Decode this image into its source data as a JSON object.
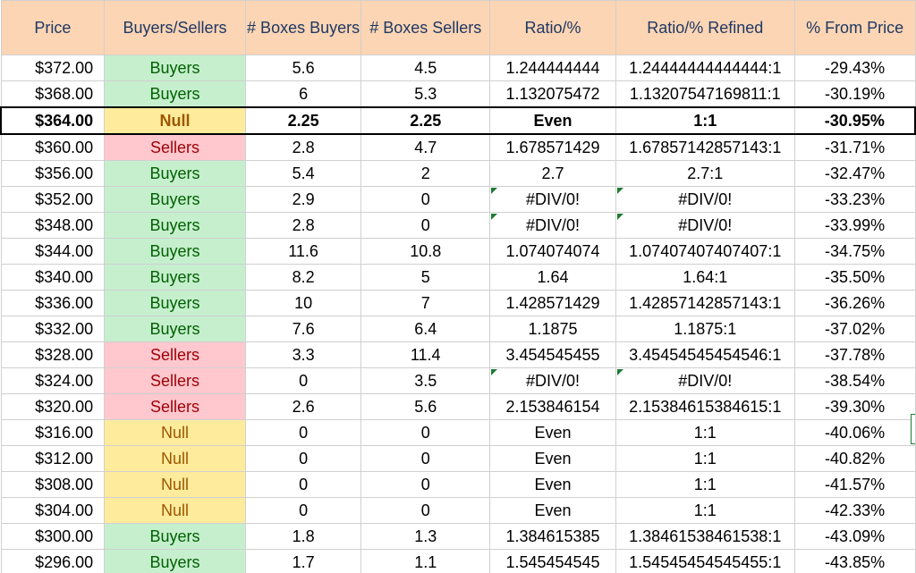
{
  "headers": [
    "Price",
    "Buyers/Sellers",
    "# Boxes Buyers",
    "# Boxes Sellers",
    "Ratio/%",
    "Ratio/% Refined",
    "% From Price"
  ],
  "colors": {
    "header_bg": "#fcd5b4",
    "header_text": "#1f3864",
    "buyers_bg": "#c6efce",
    "buyers_text": "#006100",
    "sellers_bg": "#ffc7ce",
    "sellers_text": "#9c0006",
    "null_bg": "#ffeb9c",
    "null_text": "#9c5700",
    "error_flag": "#1e7b34"
  },
  "rows": [
    {
      "price": "$372.00",
      "side": "Buyers",
      "boxes_buyers": "5.6",
      "boxes_sellers": "4.5",
      "ratio": "1.244444444",
      "ratio_refined": "1.24444444444444:1",
      "from_price": "-29.43%",
      "error": false,
      "highlight": false
    },
    {
      "price": "$368.00",
      "side": "Buyers",
      "boxes_buyers": "6",
      "boxes_sellers": "5.3",
      "ratio": "1.132075472",
      "ratio_refined": "1.13207547169811:1",
      "from_price": "-30.19%",
      "error": false,
      "highlight": false
    },
    {
      "price": "$364.00",
      "side": "Null",
      "boxes_buyers": "2.25",
      "boxes_sellers": "2.25",
      "ratio": "Even",
      "ratio_refined": "1:1",
      "from_price": "-30.95%",
      "error": false,
      "highlight": true
    },
    {
      "price": "$360.00",
      "side": "Sellers",
      "boxes_buyers": "2.8",
      "boxes_sellers": "4.7",
      "ratio": "1.678571429",
      "ratio_refined": "1.67857142857143:1",
      "from_price": "-31.71%",
      "error": false,
      "highlight": false
    },
    {
      "price": "$356.00",
      "side": "Buyers",
      "boxes_buyers": "5.4",
      "boxes_sellers": "2",
      "ratio": "2.7",
      "ratio_refined": "2.7:1",
      "from_price": "-32.47%",
      "error": false,
      "highlight": false
    },
    {
      "price": "$352.00",
      "side": "Buyers",
      "boxes_buyers": "2.9",
      "boxes_sellers": "0",
      "ratio": "#DIV/0!",
      "ratio_refined": "#DIV/0!",
      "from_price": "-33.23%",
      "error": true,
      "highlight": false
    },
    {
      "price": "$348.00",
      "side": "Buyers",
      "boxes_buyers": "2.8",
      "boxes_sellers": "0",
      "ratio": "#DIV/0!",
      "ratio_refined": "#DIV/0!",
      "from_price": "-33.99%",
      "error": true,
      "highlight": false
    },
    {
      "price": "$344.00",
      "side": "Buyers",
      "boxes_buyers": "11.6",
      "boxes_sellers": "10.8",
      "ratio": "1.074074074",
      "ratio_refined": "1.07407407407407:1",
      "from_price": "-34.75%",
      "error": false,
      "highlight": false
    },
    {
      "price": "$340.00",
      "side": "Buyers",
      "boxes_buyers": "8.2",
      "boxes_sellers": "5",
      "ratio": "1.64",
      "ratio_refined": "1.64:1",
      "from_price": "-35.50%",
      "error": false,
      "highlight": false
    },
    {
      "price": "$336.00",
      "side": "Buyers",
      "boxes_buyers": "10",
      "boxes_sellers": "7",
      "ratio": "1.428571429",
      "ratio_refined": "1.42857142857143:1",
      "from_price": "-36.26%",
      "error": false,
      "highlight": false
    },
    {
      "price": "$332.00",
      "side": "Buyers",
      "boxes_buyers": "7.6",
      "boxes_sellers": "6.4",
      "ratio": "1.1875",
      "ratio_refined": "1.1875:1",
      "from_price": "-37.02%",
      "error": false,
      "highlight": false
    },
    {
      "price": "$328.00",
      "side": "Sellers",
      "boxes_buyers": "3.3",
      "boxes_sellers": "11.4",
      "ratio": "3.454545455",
      "ratio_refined": "3.45454545454546:1",
      "from_price": "-37.78%",
      "error": false,
      "highlight": false
    },
    {
      "price": "$324.00",
      "side": "Sellers",
      "boxes_buyers": "0",
      "boxes_sellers": "3.5",
      "ratio": "#DIV/0!",
      "ratio_refined": "#DIV/0!",
      "from_price": "-38.54%",
      "error": true,
      "highlight": false
    },
    {
      "price": "$320.00",
      "side": "Sellers",
      "boxes_buyers": "2.6",
      "boxes_sellers": "5.6",
      "ratio": "2.153846154",
      "ratio_refined": "2.15384615384615:1",
      "from_price": "-39.30%",
      "error": false,
      "highlight": false
    },
    {
      "price": "$316.00",
      "side": "Null",
      "boxes_buyers": "0",
      "boxes_sellers": "0",
      "ratio": "Even",
      "ratio_refined": "1:1",
      "from_price": "-40.06%",
      "error": false,
      "highlight": false
    },
    {
      "price": "$312.00",
      "side": "Null",
      "boxes_buyers": "0",
      "boxes_sellers": "0",
      "ratio": "Even",
      "ratio_refined": "1:1",
      "from_price": "-40.82%",
      "error": false,
      "highlight": false
    },
    {
      "price": "$308.00",
      "side": "Null",
      "boxes_buyers": "0",
      "boxes_sellers": "0",
      "ratio": "Even",
      "ratio_refined": "1:1",
      "from_price": "-41.57%",
      "error": false,
      "highlight": false
    },
    {
      "price": "$304.00",
      "side": "Null",
      "boxes_buyers": "0",
      "boxes_sellers": "0",
      "ratio": "Even",
      "ratio_refined": "1:1",
      "from_price": "-42.33%",
      "error": false,
      "highlight": false
    },
    {
      "price": "$300.00",
      "side": "Buyers",
      "boxes_buyers": "1.8",
      "boxes_sellers": "1.3",
      "ratio": "1.384615385",
      "ratio_refined": "1.38461538461538:1",
      "from_price": "-43.09%",
      "error": false,
      "highlight": false
    },
    {
      "price": "$296.00",
      "side": "Buyers",
      "boxes_buyers": "1.7",
      "boxes_sellers": "1.1",
      "ratio": "1.545454545",
      "ratio_refined": "1.54545454545455:1",
      "from_price": "-43.85%",
      "error": false,
      "highlight": false
    }
  ]
}
